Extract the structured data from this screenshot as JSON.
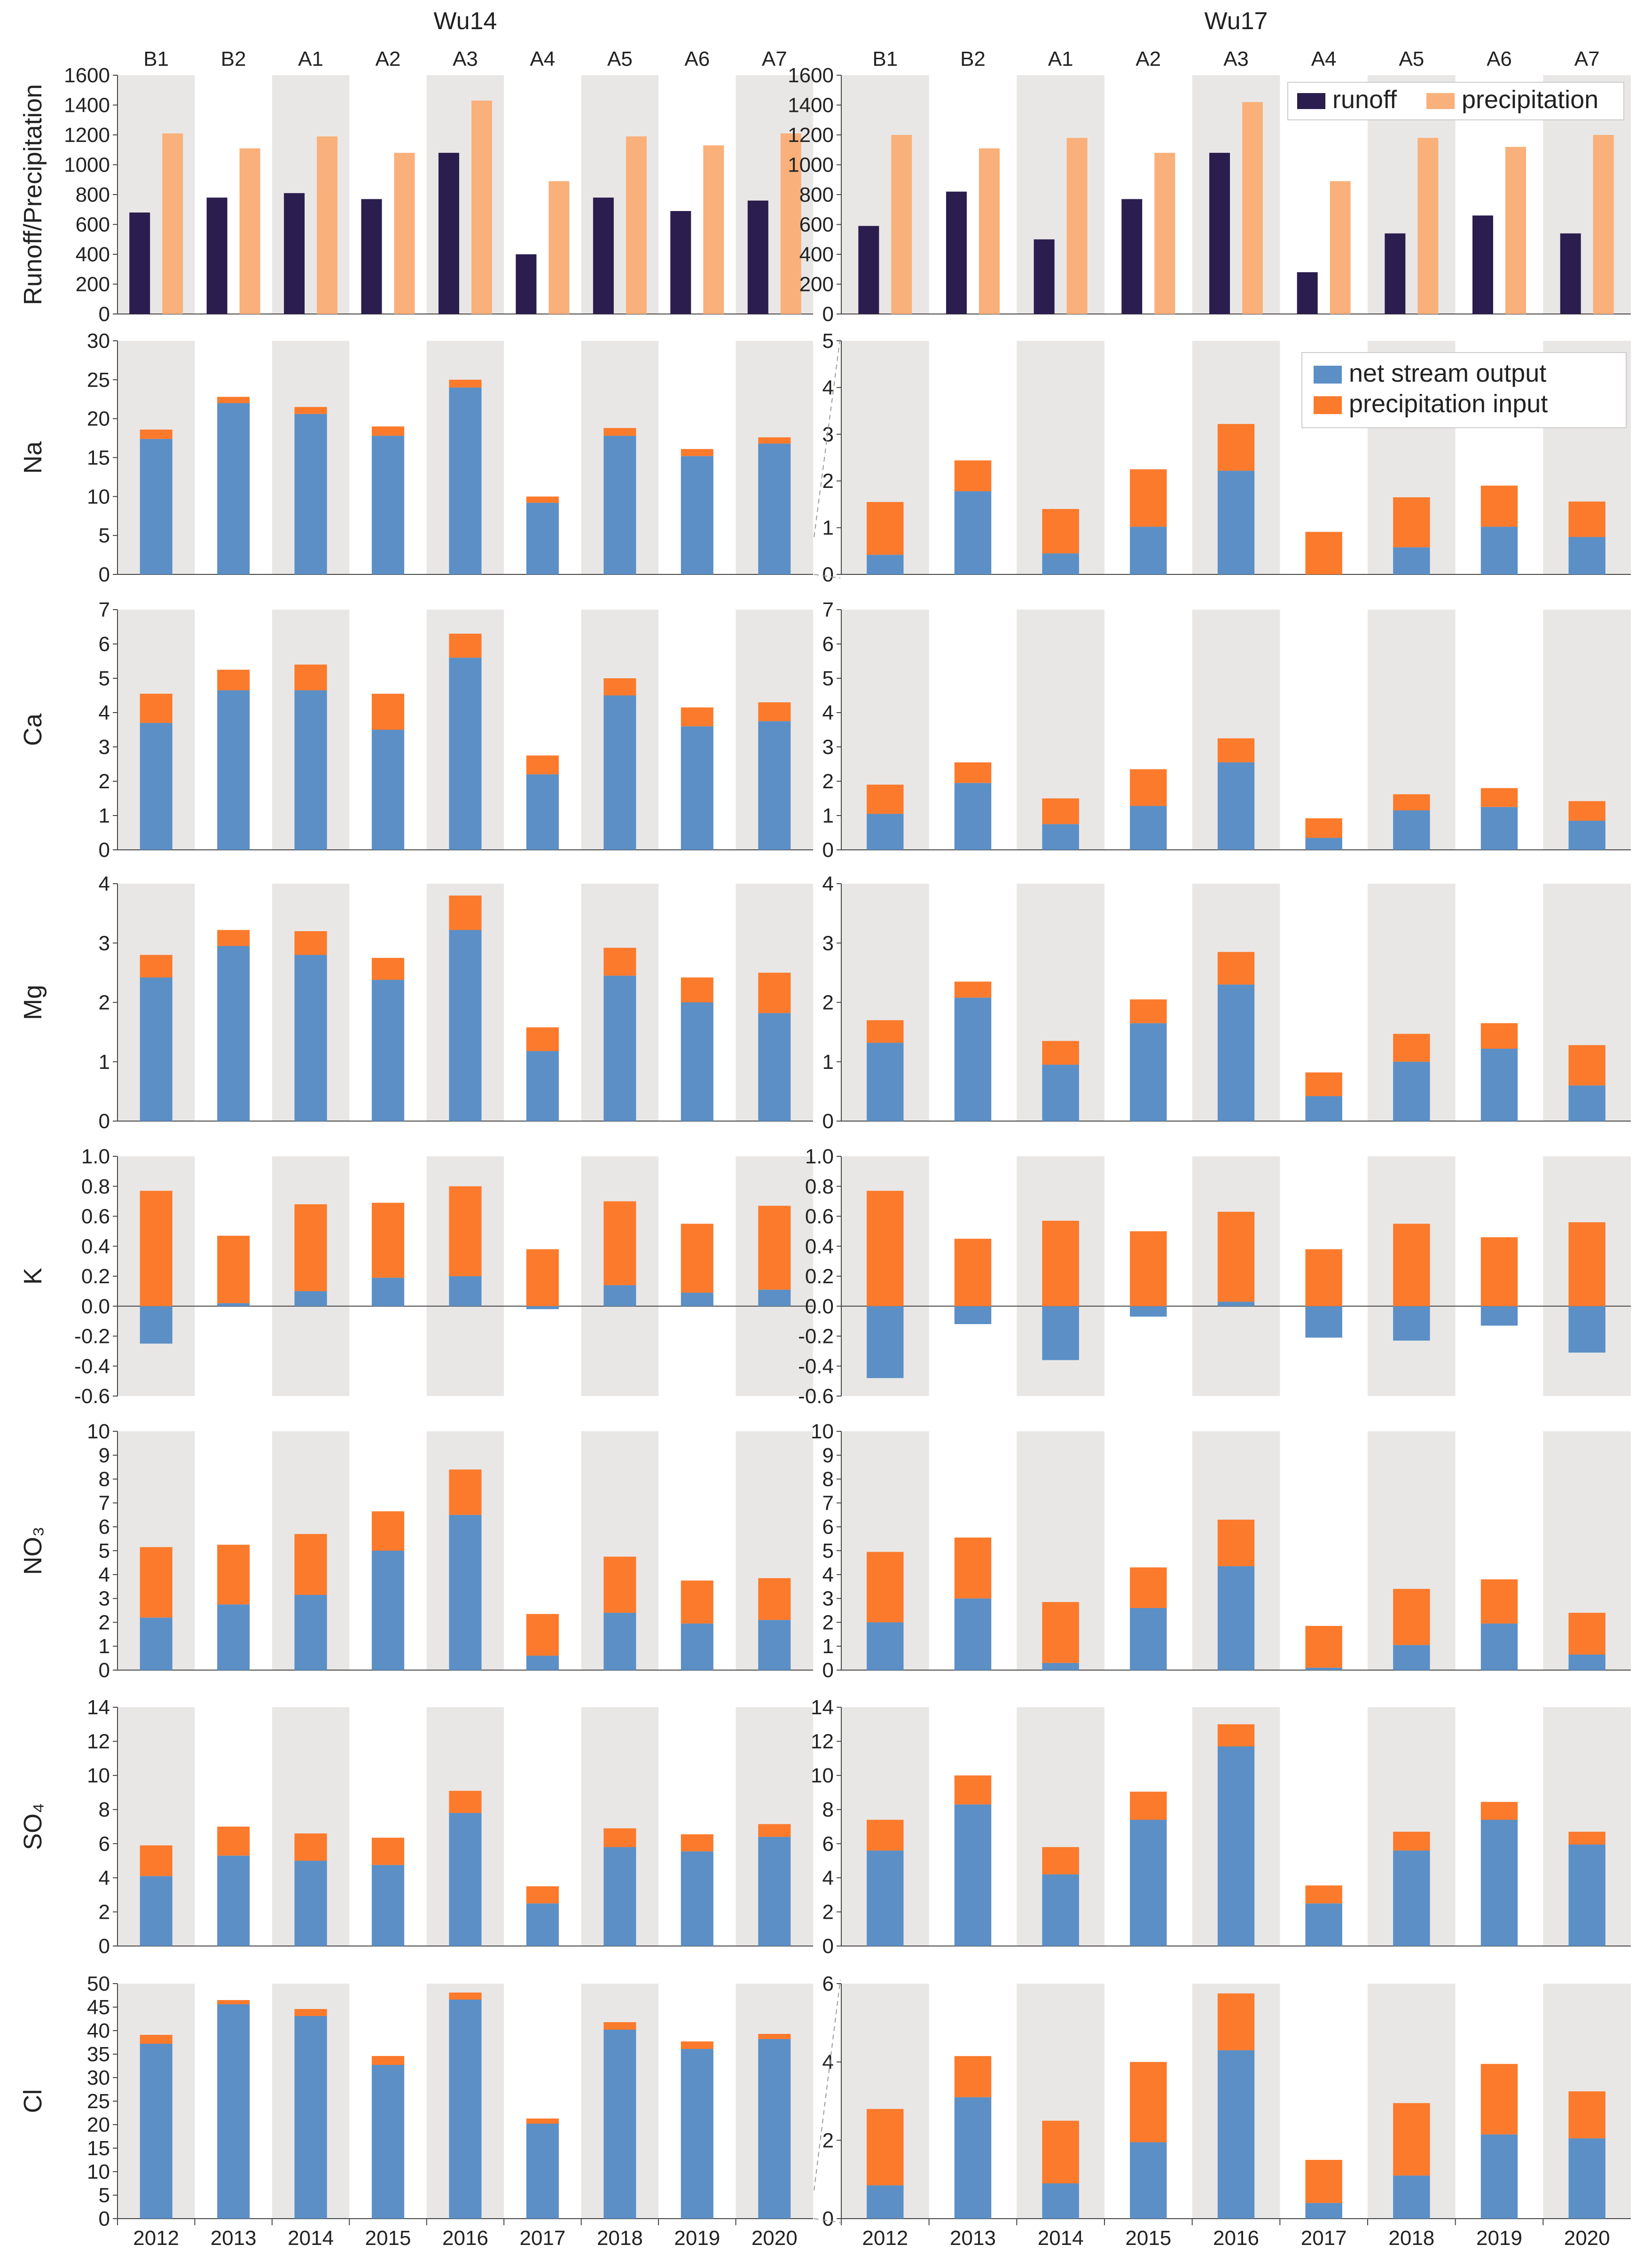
{
  "colors": {
    "runoff": "#2b1d4e",
    "precipitation": "#f9b07a",
    "net_stream_output": "#5b8fc6",
    "precipitation_input": "#fb7a2c",
    "band": "#e9e7e6",
    "axis": "#444444",
    "text": "#222222"
  },
  "chart_data": {
    "type": "bar",
    "catchments": [
      "Wu14",
      "Wu17"
    ],
    "sites": [
      "B1",
      "B2",
      "A1",
      "A2",
      "A3",
      "A4",
      "A5",
      "A6",
      "A7"
    ],
    "years": [
      "2012",
      "2013",
      "2014",
      "2015",
      "2016",
      "2017",
      "2018",
      "2019",
      "2020"
    ],
    "legend_top": [
      "runoff",
      "precipitation"
    ],
    "legend_stack": [
      "net stream output",
      "precipitation input"
    ],
    "panels": [
      {
        "id": "runoff",
        "ylabel": "Runoff/Precipitation",
        "kind": "grouped",
        "series_names": [
          "runoff",
          "precipitation"
        ],
        "Wu14": {
          "ylim": [
            0,
            1600
          ],
          "ticks": [
            "0",
            "200",
            "400",
            "600",
            "800",
            "1000",
            "1200",
            "1400",
            "1600"
          ],
          "runoff": [
            680,
            780,
            810,
            770,
            1080,
            400,
            780,
            690,
            760
          ],
          "precipitation": [
            1210,
            1110,
            1190,
            1080,
            1430,
            890,
            1190,
            1130,
            1210
          ]
        },
        "Wu17": {
          "ylim": [
            0,
            1600
          ],
          "ticks": [
            "0",
            "200",
            "400",
            "600",
            "800",
            "1000",
            "1200",
            "1400",
            "1600"
          ],
          "runoff": [
            590,
            820,
            500,
            770,
            1080,
            280,
            540,
            660,
            540
          ],
          "precipitation": [
            1200,
            1110,
            1180,
            1080,
            1420,
            890,
            1180,
            1120,
            1200
          ]
        }
      },
      {
        "id": "Na",
        "ylabel": "Na",
        "kind": "stacked",
        "Wu14": {
          "ylim": [
            0,
            30
          ],
          "ticks": [
            "0",
            "5",
            "10",
            "15",
            "20",
            "25",
            "30"
          ],
          "net": [
            17.4,
            22.0,
            20.6,
            17.8,
            24.0,
            9.2,
            17.8,
            15.2,
            16.8
          ],
          "precip": [
            1.2,
            0.8,
            0.9,
            1.2,
            1.0,
            0.8,
            1.0,
            0.9,
            0.8
          ]
        },
        "Wu17": {
          "ylim": [
            0,
            5
          ],
          "ticks": [
            "0",
            "1",
            "2",
            "3",
            "4",
            "5"
          ],
          "net": [
            0.42,
            1.78,
            0.45,
            1.02,
            2.22,
            0.0,
            0.58,
            1.02,
            0.8
          ],
          "precip": [
            1.13,
            0.66,
            0.95,
            1.23,
            1.0,
            0.91,
            1.07,
            0.88,
            0.76
          ]
        }
      },
      {
        "id": "Ca",
        "ylabel": "Ca",
        "kind": "stacked",
        "Wu14": {
          "ylim": [
            0,
            7
          ],
          "ticks": [
            "0",
            "1",
            "2",
            "3",
            "4",
            "5",
            "6",
            "7"
          ],
          "net": [
            3.7,
            4.65,
            4.65,
            3.5,
            5.6,
            2.2,
            4.5,
            3.6,
            3.75
          ],
          "precip": [
            0.85,
            0.6,
            0.75,
            1.05,
            0.7,
            0.55,
            0.5,
            0.55,
            0.55
          ]
        },
        "Wu17": {
          "ylim": [
            0,
            7
          ],
          "ticks": [
            "0",
            "1",
            "2",
            "3",
            "4",
            "5",
            "6",
            "7"
          ],
          "net": [
            1.05,
            1.95,
            0.75,
            1.28,
            2.55,
            0.35,
            1.15,
            1.25,
            0.85
          ],
          "precip": [
            0.85,
            0.6,
            0.75,
            1.07,
            0.7,
            0.57,
            0.47,
            0.55,
            0.57
          ]
        }
      },
      {
        "id": "Mg",
        "ylabel": "Mg",
        "kind": "stacked",
        "Wu14": {
          "ylim": [
            0,
            4
          ],
          "ticks": [
            "0",
            "1",
            "2",
            "3",
            "4"
          ],
          "net": [
            2.42,
            2.95,
            2.8,
            2.38,
            3.22,
            1.18,
            2.45,
            2.0,
            1.82
          ],
          "precip": [
            0.38,
            0.27,
            0.4,
            0.37,
            0.58,
            0.4,
            0.47,
            0.42,
            0.68
          ]
        },
        "Wu17": {
          "ylim": [
            0,
            4
          ],
          "ticks": [
            "0",
            "1",
            "2",
            "3",
            "4"
          ],
          "net": [
            1.32,
            2.08,
            0.95,
            1.65,
            2.3,
            0.42,
            1.0,
            1.22,
            0.6
          ],
          "precip": [
            0.38,
            0.27,
            0.4,
            0.4,
            0.55,
            0.4,
            0.47,
            0.43,
            0.68
          ]
        }
      },
      {
        "id": "K",
        "ylabel": "K",
        "kind": "stacked",
        "Wu14": {
          "ylim": [
            -0.6,
            1.0
          ],
          "ticks": [
            "-0.6",
            "-0.4",
            "-0.2",
            "0.0",
            "0.2",
            "0.4",
            "0.6",
            "0.8",
            "1.0"
          ],
          "net": [
            -0.25,
            0.02,
            0.1,
            0.19,
            0.2,
            -0.02,
            0.14,
            0.09,
            0.11
          ],
          "precip": [
            0.77,
            0.45,
            0.58,
            0.5,
            0.6,
            0.38,
            0.56,
            0.46,
            0.56
          ]
        },
        "Wu17": {
          "ylim": [
            -0.6,
            1.0
          ],
          "ticks": [
            "-0.6",
            "-0.4",
            "-0.2",
            "0.0",
            "0.2",
            "0.4",
            "0.6",
            "0.8",
            "1.0"
          ],
          "net": [
            -0.48,
            -0.12,
            -0.36,
            -0.07,
            0.03,
            -0.21,
            -0.23,
            -0.13,
            -0.31
          ],
          "precip": [
            0.77,
            0.45,
            0.57,
            0.5,
            0.6,
            0.38,
            0.55,
            0.46,
            0.56
          ]
        }
      },
      {
        "id": "NO3",
        "ylabel": "NO₃",
        "kind": "stacked",
        "Wu14": {
          "ylim": [
            0,
            10
          ],
          "ticks": [
            "0",
            "1",
            "2",
            "3",
            "4",
            "5",
            "6",
            "7",
            "8",
            "9",
            "10"
          ],
          "net": [
            2.2,
            2.75,
            3.15,
            5.0,
            6.5,
            0.6,
            2.4,
            1.95,
            2.1
          ],
          "precip": [
            2.95,
            2.5,
            2.55,
            1.65,
            1.9,
            1.75,
            2.35,
            1.8,
            1.75
          ]
        },
        "Wu17": {
          "ylim": [
            0,
            10
          ],
          "ticks": [
            "0",
            "1",
            "2",
            "3",
            "4",
            "5",
            "6",
            "7",
            "8",
            "9",
            "10"
          ],
          "net": [
            2.0,
            3.0,
            0.3,
            2.6,
            4.35,
            0.1,
            1.05,
            1.95,
            0.65
          ],
          "precip": [
            2.95,
            2.55,
            2.55,
            1.7,
            1.95,
            1.75,
            2.35,
            1.85,
            1.75
          ]
        }
      },
      {
        "id": "SO4",
        "ylabel": "SO₄",
        "kind": "stacked",
        "Wu14": {
          "ylim": [
            0,
            14
          ],
          "ticks": [
            "0",
            "2",
            "4",
            "6",
            "8",
            "10",
            "12",
            "14"
          ],
          "net": [
            4.1,
            5.3,
            5.0,
            4.75,
            7.8,
            2.5,
            5.8,
            5.55,
            6.4
          ],
          "precip": [
            1.8,
            1.7,
            1.6,
            1.6,
            1.3,
            1.0,
            1.1,
            1.0,
            0.75
          ]
        },
        "Wu17": {
          "ylim": [
            0,
            14
          ],
          "ticks": [
            "0",
            "2",
            "4",
            "6",
            "8",
            "10",
            "12",
            "14"
          ],
          "net": [
            5.6,
            8.3,
            4.2,
            7.4,
            11.7,
            2.5,
            5.6,
            7.4,
            5.95
          ],
          "precip": [
            1.8,
            1.7,
            1.6,
            1.65,
            1.3,
            1.05,
            1.1,
            1.05,
            0.75
          ]
        }
      },
      {
        "id": "Cl",
        "ylabel": "Cl",
        "kind": "stacked",
        "Wu14": {
          "ylim": [
            0,
            50
          ],
          "ticks": [
            "0",
            "5",
            "10",
            "15",
            "20",
            "25",
            "30",
            "35",
            "40",
            "45",
            "50"
          ],
          "net": [
            37.2,
            45.6,
            43.1,
            32.7,
            46.6,
            20.2,
            40.2,
            36.1,
            38.2
          ],
          "precip": [
            1.9,
            0.9,
            1.5,
            1.9,
            1.5,
            1.1,
            1.6,
            1.6,
            1.1
          ]
        },
        "Wu17": {
          "ylim": [
            0,
            6
          ],
          "ticks": [
            "0",
            "2",
            "4",
            "6"
          ],
          "net": [
            0.85,
            3.1,
            0.9,
            1.95,
            4.3,
            0.4,
            1.1,
            2.15,
            2.05
          ],
          "precip": [
            1.95,
            1.05,
            1.6,
            2.05,
            1.45,
            1.1,
            1.85,
            1.8,
            1.2
          ]
        }
      }
    ]
  }
}
